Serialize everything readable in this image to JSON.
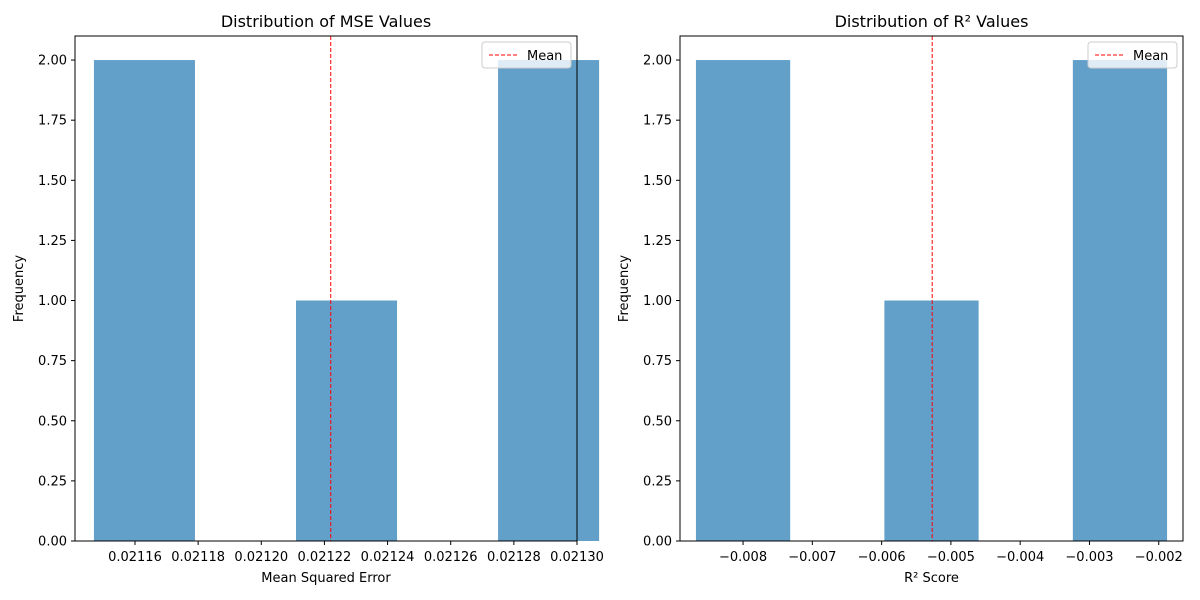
{
  "chart_data": [
    {
      "type": "bar",
      "title": "Distribution of MSE Values",
      "xlabel": "Mean Squared Error",
      "ylabel": "Frequency",
      "xlim": [
        0.021141,
        0.0213
      ],
      "ylim": [
        0,
        2.1
      ],
      "grid": false,
      "legend": {
        "placement": "upper right",
        "entries": [
          {
            "label": "Mean",
            "color": "#ff0000",
            "style": "dashed"
          }
        ]
      },
      "bar_color": "#1f77b4",
      "bar_alpha": 0.7,
      "bins": [
        {
          "x0": 0.021147,
          "x1": 0.021179,
          "count": 2
        },
        {
          "x0": 0.021179,
          "x1": 0.021211,
          "count": 0
        },
        {
          "x0": 0.021211,
          "x1": 0.021243,
          "count": 1
        },
        {
          "x0": 0.021243,
          "x1": 0.021275,
          "count": 0
        },
        {
          "x0": 0.021275,
          "x1": 0.021307,
          "count": 2
        }
      ],
      "mean": 0.021222,
      "x_ticks": [
        {
          "value": 0.02116,
          "label": "0.02116"
        },
        {
          "value": 0.02118,
          "label": "0.02118"
        },
        {
          "value": 0.0212,
          "label": "0.02120"
        },
        {
          "value": 0.02122,
          "label": "0.02122"
        },
        {
          "value": 0.02124,
          "label": "0.02124"
        },
        {
          "value": 0.02126,
          "label": "0.02126"
        },
        {
          "value": 0.02128,
          "label": "0.02128"
        },
        {
          "value": 0.0213,
          "label": "0.02130"
        }
      ],
      "y_ticks": [
        {
          "value": 0,
          "label": "0.00"
        },
        {
          "value": 0.25,
          "label": "0.25"
        },
        {
          "value": 0.5,
          "label": "0.50"
        },
        {
          "value": 0.75,
          "label": "0.75"
        },
        {
          "value": 1.0,
          "label": "1.00"
        },
        {
          "value": 1.25,
          "label": "1.25"
        },
        {
          "value": 1.5,
          "label": "1.50"
        },
        {
          "value": 1.75,
          "label": "1.75"
        },
        {
          "value": 2.0,
          "label": "2.00"
        }
      ]
    },
    {
      "type": "bar",
      "title": "Distribution of R² Values",
      "xlabel": "R² Score",
      "ylabel": "Frequency",
      "xlim": [
        -0.00891,
        -0.00165
      ],
      "ylim": [
        0,
        2.1
      ],
      "grid": false,
      "legend": {
        "placement": "upper right",
        "entries": [
          {
            "label": "Mean",
            "color": "#ff0000",
            "style": "dashed"
          }
        ]
      },
      "bar_color": "#1f77b4",
      "bar_alpha": 0.7,
      "bins": [
        {
          "x0": -0.00868,
          "x1": -0.00732,
          "count": 2
        },
        {
          "x0": -0.00732,
          "x1": -0.00596,
          "count": 0
        },
        {
          "x0": -0.00596,
          "x1": -0.0046,
          "count": 1
        },
        {
          "x0": -0.0046,
          "x1": -0.00324,
          "count": 0
        },
        {
          "x0": -0.00324,
          "x1": -0.00188,
          "count": 2
        }
      ],
      "mean": -0.00527,
      "x_ticks": [
        {
          "value": -0.008,
          "label": "−0.008"
        },
        {
          "value": -0.007,
          "label": "−0.007"
        },
        {
          "value": -0.006,
          "label": "−0.006"
        },
        {
          "value": -0.005,
          "label": "−0.005"
        },
        {
          "value": -0.004,
          "label": "−0.004"
        },
        {
          "value": -0.003,
          "label": "−0.003"
        },
        {
          "value": -0.002,
          "label": "−0.002"
        }
      ],
      "y_ticks": [
        {
          "value": 0,
          "label": "0.00"
        },
        {
          "value": 0.25,
          "label": "0.25"
        },
        {
          "value": 0.5,
          "label": "0.50"
        },
        {
          "value": 0.75,
          "label": "0.75"
        },
        {
          "value": 1.0,
          "label": "1.00"
        },
        {
          "value": 1.25,
          "label": "1.25"
        },
        {
          "value": 1.5,
          "label": "1.50"
        },
        {
          "value": 1.75,
          "label": "1.75"
        },
        {
          "value": 2.0,
          "label": "2.00"
        }
      ]
    }
  ]
}
